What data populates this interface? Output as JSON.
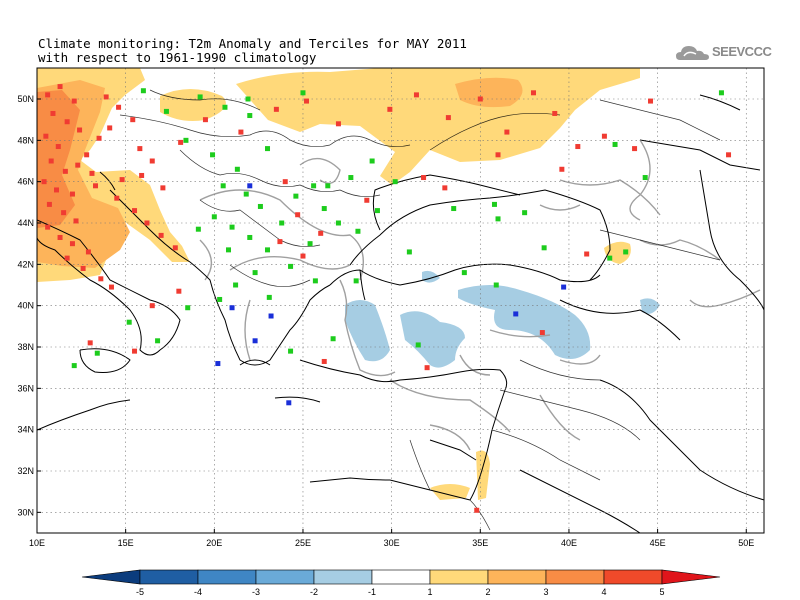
{
  "title": {
    "line1": "Climate monitoring: T2m Anomaly and Terciles for MAY 2011",
    "line2": "with respect to 1961-1990 climatology"
  },
  "logo": {
    "text": "SEEVCCC",
    "icon": "cloud-icon"
  },
  "map": {
    "lon_range": [
      10,
      51
    ],
    "lat_range": [
      29,
      51.5
    ],
    "lon_ticks": [
      {
        "value": 10,
        "label": "10E"
      },
      {
        "value": 15,
        "label": "15E"
      },
      {
        "value": 20,
        "label": "20E"
      },
      {
        "value": 25,
        "label": "25E"
      },
      {
        "value": 30,
        "label": "30E"
      },
      {
        "value": 35,
        "label": "35E"
      },
      {
        "value": 40,
        "label": "40E"
      },
      {
        "value": 45,
        "label": "45E"
      },
      {
        "value": 50,
        "label": "50E"
      }
    ],
    "lat_ticks": [
      {
        "value": 30,
        "label": "30N"
      },
      {
        "value": 32,
        "label": "32N"
      },
      {
        "value": 34,
        "label": "34N"
      },
      {
        "value": 36,
        "label": "36N"
      },
      {
        "value": 38,
        "label": "38N"
      },
      {
        "value": 40,
        "label": "40N"
      },
      {
        "value": 42,
        "label": "42N"
      },
      {
        "value": 44,
        "label": "44N"
      },
      {
        "value": 46,
        "label": "46N"
      },
      {
        "value": 48,
        "label": "48N"
      },
      {
        "value": 50,
        "label": "50N"
      }
    ],
    "grid": "dotted",
    "colors": {
      "warm1": "#ffd97a",
      "warm2": "#fdb45a",
      "warm3": "#f88c45",
      "cold1": "#a6cde3",
      "upper_tercile": "#f03b32",
      "middle_tercile": "#1dcc1d",
      "lower_tercile": "#1a2fd8"
    }
  },
  "colorbar": {
    "labels": [
      "-5",
      "-4",
      "-3",
      "-2",
      "-1",
      "1",
      "2",
      "3",
      "4",
      "5"
    ],
    "colors": [
      "#0b3c7d",
      "#1f5ea3",
      "#3f86c4",
      "#6aaad8",
      "#a6cde3",
      "#ffffff",
      "#ffd97a",
      "#fdb45a",
      "#f88c45",
      "#f04a2a",
      "#e0151b"
    ]
  }
}
